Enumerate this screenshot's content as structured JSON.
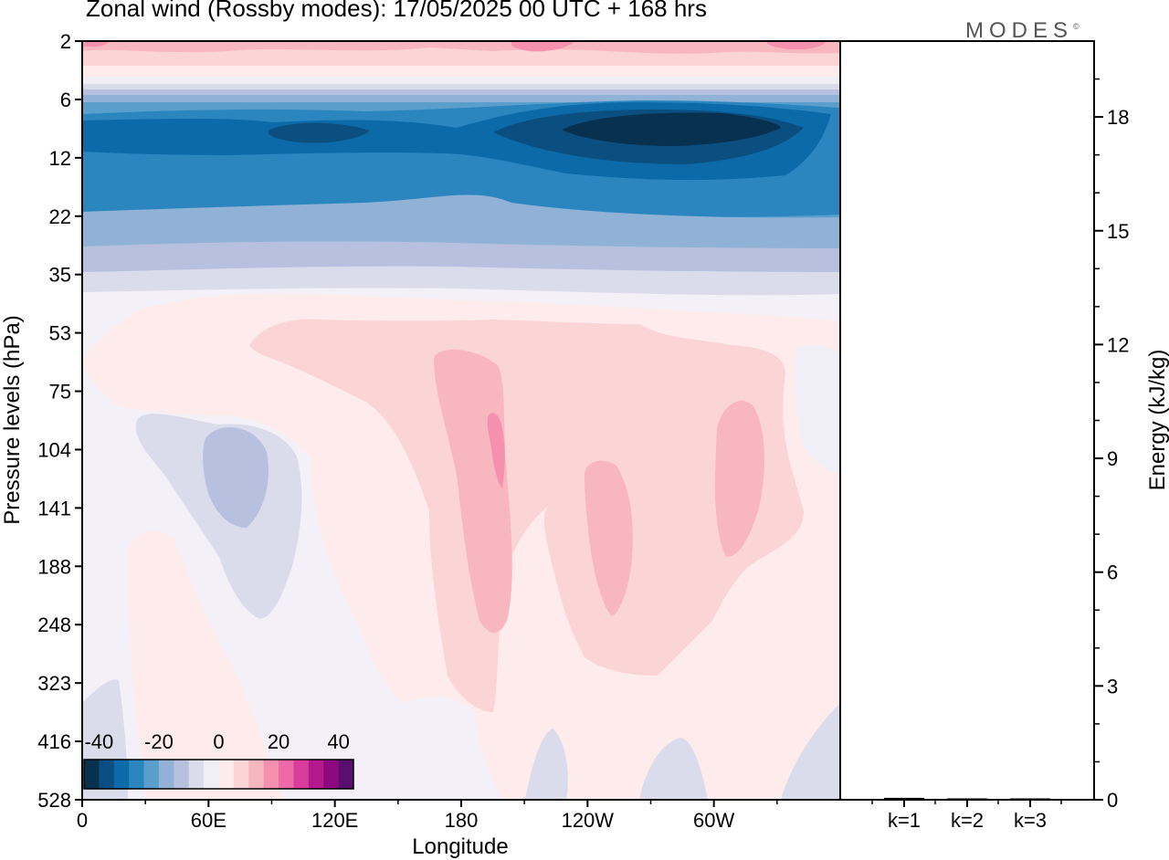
{
  "title": "Zonal wind (Rossby modes):  17/05/2025  00 UTC  + 168 hrs",
  "logo": "MODES",
  "logo_mark": "©",
  "chart_data": [
    {
      "type": "heatmap",
      "title": "Zonal wind (Rossby modes):  17/05/2025  00 UTC  + 168 hrs",
      "xlabel": "Longitude",
      "ylabel": "Pressure levels (hPa)",
      "x_ticks": [
        "0",
        "60E",
        "120E",
        "180",
        "120W",
        "60W"
      ],
      "y_ticks": [
        "2",
        "6",
        "12",
        "22",
        "35",
        "53",
        "75",
        "104",
        "141",
        "188",
        "248",
        "323",
        "416",
        "528"
      ],
      "y_scale": "log-pressure, top to bottom",
      "colorbar": {
        "ticks": [
          "-40",
          "-20",
          "0",
          "20",
          "40"
        ],
        "range": [
          -45,
          45
        ],
        "step": 5,
        "colors": [
          "#08304f",
          "#0a4f80",
          "#0c6aa8",
          "#2b86c0",
          "#5a9fcc",
          "#8fb2d6",
          "#b7c0de",
          "#dadcec",
          "#f1eff6",
          "#fdeceb",
          "#fbd4d6",
          "#f8b6bf",
          "#f591ae",
          "#ee6aa6",
          "#d93d9b",
          "#b51a8c",
          "#8c0a7e",
          "#5a0f6e"
        ]
      },
      "field_description": "Easterly jet core (~-40) near 8-12 hPa around 150W-120W; westerlies up to ~25 near 2 hPa; weak westerly plumes (~10-20) in the troposphere near 180, 140W and 80W; weak easterlies (~-10) near 60E, 104-188 hPa",
      "levels": [
        "2",
        "6",
        "12",
        "22",
        "35",
        "53",
        "75",
        "104",
        "141",
        "188",
        "248",
        "323",
        "416",
        "528"
      ],
      "longitudes": [
        0,
        60,
        120,
        180,
        240,
        300
      ],
      "values": [
        [
          15,
          10,
          15,
          12,
          20,
          25
        ],
        [
          -15,
          -20,
          -20,
          -25,
          -25,
          -20
        ],
        [
          -30,
          -35,
          -30,
          -35,
          -40,
          -35
        ],
        [
          -25,
          -25,
          -25,
          -30,
          -30,
          -25
        ],
        [
          -10,
          -10,
          -10,
          -10,
          -15,
          -10
        ],
        [
          0,
          5,
          5,
          5,
          5,
          5
        ],
        [
          0,
          0,
          5,
          15,
          10,
          10
        ],
        [
          -5,
          -10,
          5,
          20,
          10,
          15
        ],
        [
          0,
          -10,
          5,
          15,
          15,
          15
        ],
        [
          5,
          -5,
          5,
          15,
          10,
          10
        ],
        [
          5,
          0,
          5,
          10,
          5,
          5
        ],
        [
          0,
          5,
          5,
          5,
          5,
          5
        ],
        [
          0,
          0,
          0,
          0,
          0,
          0
        ],
        [
          0,
          0,
          0,
          0,
          0,
          0
        ]
      ]
    },
    {
      "type": "bar",
      "categories": [
        "k=1",
        "k=2",
        "k=3"
      ],
      "values": [
        0.05,
        0.03,
        0.03
      ],
      "ylabel": "Energy (kJ/kg)",
      "ylim": [
        0,
        20
      ],
      "y_ticks": [
        "0",
        "3",
        "6",
        "9",
        "12",
        "15",
        "18"
      ]
    }
  ]
}
